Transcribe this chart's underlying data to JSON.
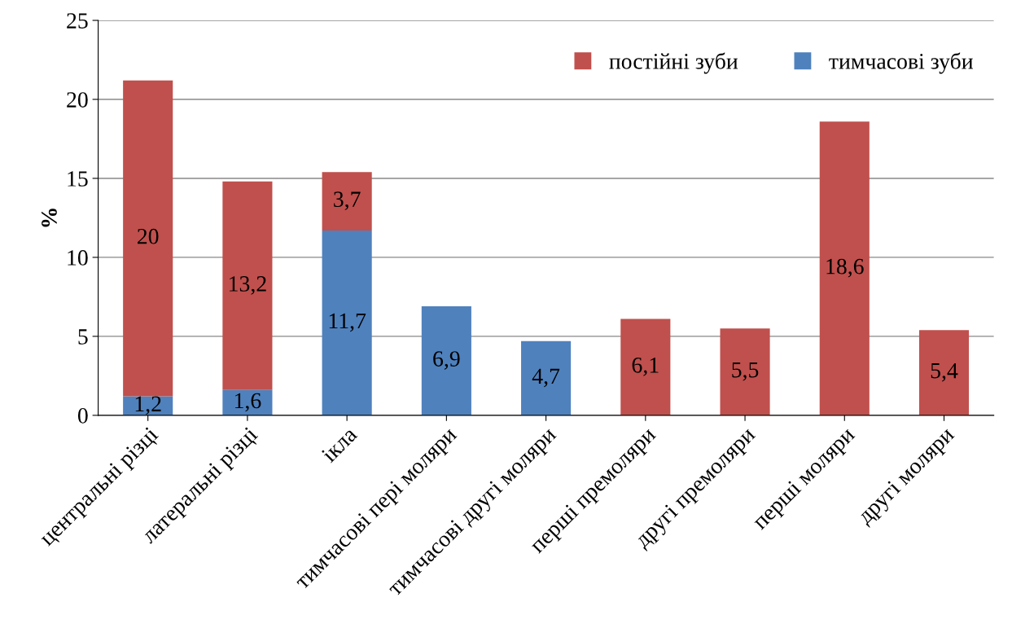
{
  "chart_data": {
    "type": "bar",
    "stacked": true,
    "ylabel": "%",
    "categories": [
      "центральні різці",
      "латеральні різці",
      "ікла",
      "тимчасові пері моляри",
      "тимчасові другі моляри",
      "перші премоляри",
      "другі премоляри",
      "перші моляри",
      "другі моляри"
    ],
    "series": [
      {
        "name": "тимчасові зуби",
        "color": "#4f81bd",
        "values": [
          1.2,
          1.6,
          11.7,
          6.9,
          4.7,
          null,
          null,
          null,
          null
        ],
        "value_labels": [
          "1,2",
          "1,6",
          "11,7",
          "6,9",
          "4,7",
          null,
          null,
          null,
          null
        ]
      },
      {
        "name": "постійні зуби",
        "color": "#c0504d",
        "values": [
          20,
          13.2,
          3.7,
          null,
          null,
          6.1,
          5.5,
          18.6,
          5.4
        ],
        "value_labels": [
          "20",
          "13,2",
          "3,7",
          null,
          null,
          "6,1",
          "5,5",
          "18,6",
          "5,4"
        ]
      }
    ],
    "ylim": [
      0,
      25
    ],
    "yticks": [
      0,
      5,
      10,
      15,
      20,
      25
    ],
    "grid": "y",
    "legend": "top right"
  }
}
